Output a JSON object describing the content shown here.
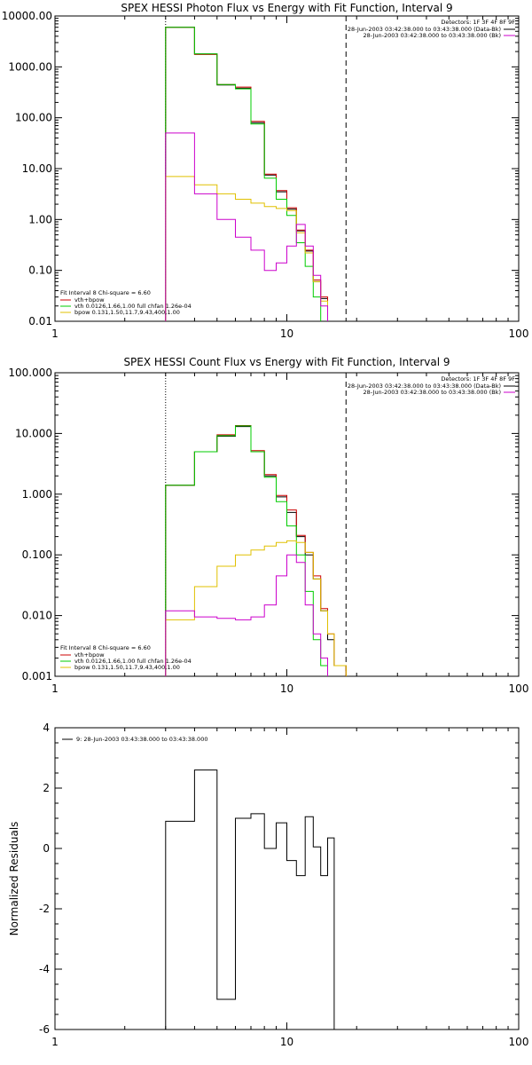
{
  "palette": {
    "data": "#000000",
    "total": "#cc0000",
    "vth": "#00cc00",
    "bpow": "#e0c000",
    "model": "#cc00cc",
    "background": "#ffffff"
  },
  "chart_data": [
    {
      "type": "line",
      "title": "SPEX HESSI Photon Flux vs Energy with Fit Function, Interval 9",
      "xscale": "log",
      "yscale": "log",
      "xlim": [
        1,
        100
      ],
      "ylim": [
        0.01,
        10000
      ],
      "xticks": [
        "1",
        "10",
        "100"
      ],
      "yticks": [
        "0.01",
        "0.10",
        "1.00",
        "10.00",
        "100.00",
        "1000.00",
        "10000.00"
      ],
      "vlines": [
        3.0,
        18.0
      ],
      "edges": [
        3,
        4,
        5,
        6,
        7,
        8,
        9,
        10,
        11,
        12,
        13,
        14,
        15,
        16,
        18
      ],
      "series": [
        {
          "key": "data",
          "color": "#000000",
          "values": [
            6000,
            1800,
            440,
            380,
            80,
            7.5,
            3.5,
            1.6,
            0.6,
            0.24,
            0.06,
            0.028
          ]
        },
        {
          "key": "total",
          "color": "#cc0000",
          "values": [
            6000,
            1750,
            450,
            400,
            85,
            7.8,
            3.7,
            1.7,
            0.62,
            0.25,
            0.065,
            0.03
          ]
        },
        {
          "key": "vth",
          "color": "#00cc00",
          "values": [
            6000,
            1800,
            450,
            370,
            75,
            6.5,
            2.5,
            1.2,
            0.35,
            0.12,
            0.03,
            0.005
          ]
        },
        {
          "key": "bpow",
          "color": "#e0c000",
          "values": [
            7.0,
            4.8,
            3.2,
            2.5,
            2.1,
            1.8,
            1.65,
            1.5,
            0.55,
            0.22,
            0.06,
            0.025
          ]
        },
        {
          "key": "model",
          "color": "#cc00cc",
          "values": [
            50,
            3.2,
            1.0,
            0.45,
            0.25,
            0.1,
            0.14,
            0.3,
            0.8,
            0.3,
            0.08,
            0.02
          ]
        }
      ],
      "right_legend": {
        "detectors": "Detectors: 1F 3F 4F 8F 9F",
        "lines": [
          "28-Jun-2003 03:42:38.000 to 03:43:38.000 (Data-Bk)",
          "28-Jun-2003 03:42:38.000 to 03:43:38.000 (Bk)"
        ],
        "line_colors": [
          "#000000",
          "#cc00cc"
        ]
      },
      "left_legend": {
        "header": "Fit Interval 8   Chi-square = 6.60",
        "items": [
          {
            "label": "vth+bpow",
            "color": "#cc0000"
          },
          {
            "label": "vth 0.0126,1.66,1.00  full chfan 1.26e-04",
            "color": "#00cc00"
          },
          {
            "label": "bpow 0.131,1.50,11.7,9.43,400,1.00",
            "color": "#e0c000"
          }
        ]
      }
    },
    {
      "type": "line",
      "title": "SPEX HESSI Count Flux vs Energy with Fit Function, Interval 9",
      "xscale": "log",
      "yscale": "log",
      "xlim": [
        1,
        100
      ],
      "ylim": [
        0.001,
        100
      ],
      "xticks": [
        "1",
        "10",
        "100"
      ],
      "yticks": [
        "0.001",
        "0.010",
        "0.100",
        "1.000",
        "10.000",
        "100.000"
      ],
      "vlines": [
        3.0,
        18.0
      ],
      "edges": [
        3,
        4,
        5,
        6,
        7,
        8,
        9,
        10,
        11,
        12,
        13,
        14,
        15,
        16,
        18,
        20
      ],
      "series": [
        {
          "key": "data",
          "color": "#000000",
          "values": [
            1.4,
            5.0,
            9.0,
            13.0,
            5.0,
            2.0,
            0.9,
            0.5,
            0.2,
            0.1,
            0.04,
            0.012,
            0.004,
            0.0015
          ]
        },
        {
          "key": "total",
          "color": "#cc0000",
          "values": [
            1.4,
            5.0,
            9.5,
            13.5,
            5.2,
            2.1,
            0.95,
            0.55,
            0.21,
            0.11,
            0.045,
            0.013,
            0.005,
            0.0015
          ]
        },
        {
          "key": "vth",
          "color": "#00cc00",
          "values": [
            1.4,
            5.0,
            9.2,
            13.3,
            5.0,
            1.9,
            0.75,
            0.3,
            0.1,
            0.025,
            0.004,
            0.0015
          ]
        },
        {
          "key": "bpow",
          "color": "#e0c000",
          "values": [
            0.0085,
            0.03,
            0.065,
            0.1,
            0.12,
            0.14,
            0.16,
            0.17,
            0.16,
            0.11,
            0.04,
            0.012,
            0.005,
            0.0015
          ]
        },
        {
          "key": "model",
          "color": "#cc00cc",
          "values": [
            0.012,
            0.0095,
            0.009,
            0.0085,
            0.0095,
            0.015,
            0.045,
            0.1,
            0.075,
            0.015,
            0.005,
            0.002
          ]
        }
      ],
      "right_legend": {
        "detectors": "Detectors: 1F 3F 4F 8F 9F",
        "lines": [
          "28-Jun-2003 03:42:38.000 to 03:43:38.000 (Data-Bk)",
          "28-Jun-2003 03:42:38.000 to 03:43:38.000 (Bk)"
        ],
        "line_colors": [
          "#000000",
          "#cc00cc"
        ]
      },
      "left_legend": {
        "header": "Fit Interval 8   Chi-square = 6.60",
        "items": [
          {
            "label": "vth+bpow",
            "color": "#cc0000"
          },
          {
            "label": "vth 0.0126,1.66,1.00  full chfan 1.26e-04",
            "color": "#00cc00"
          },
          {
            "label": "bpow 0.131,1.50,11.7,9.43,400,1.00",
            "color": "#e0c000"
          }
        ]
      }
    },
    {
      "type": "line",
      "title": "",
      "xscale": "log",
      "yscale": "linear",
      "xlim": [
        1,
        100
      ],
      "ylim": [
        -6,
        4
      ],
      "xticks": [
        "1",
        "10",
        "100"
      ],
      "yticks": [
        "-6",
        "-4",
        "-2",
        "0",
        "2",
        "4"
      ],
      "ylabel": "Normalized Residuals",
      "edges": [
        3,
        4,
        5,
        6,
        7,
        8,
        9,
        10,
        11,
        12,
        13,
        14,
        15,
        16,
        18
      ],
      "series": [
        {
          "key": "residuals",
          "color": "#000000",
          "values": [
            0.9,
            2.6,
            -5.0,
            1.0,
            1.15,
            0.0,
            0.85,
            -0.4,
            -0.9,
            1.05,
            0.05,
            -0.9,
            0.35
          ]
        }
      ],
      "legend": {
        "label": "9: 28-Jun-2003 03:43:38.000 to 03:43:38.000",
        "color": "#000000"
      }
    }
  ]
}
